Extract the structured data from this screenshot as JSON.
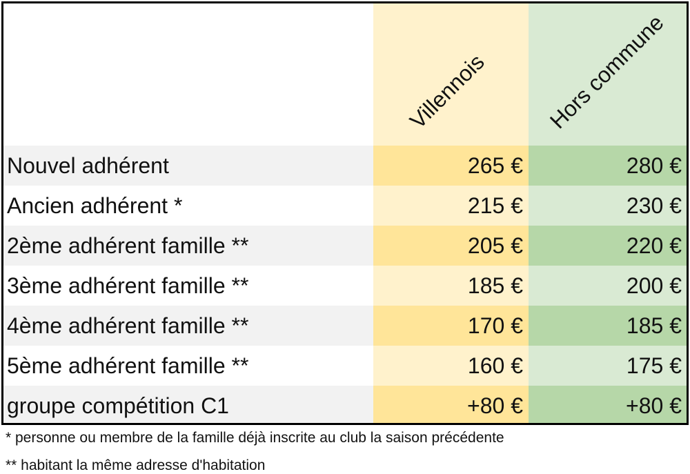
{
  "headers": {
    "col1": "Villennois",
    "col2": "Hors commune"
  },
  "colors": {
    "label_band": "#f2f2f2",
    "col1_light": "#fff2cc",
    "col1_band": "#ffe599",
    "col2_light": "#d9ead3",
    "col2_band": "#b6d7a8"
  },
  "rows": [
    {
      "label": "Nouvel adhérent",
      "v1": "265 €",
      "v2": "280 €"
    },
    {
      "label": "Ancien adhérent *",
      "v1": "215 €",
      "v2": "230 €"
    },
    {
      "label": "2ème adhérent famille **",
      "v1": "205 €",
      "v2": "220 €"
    },
    {
      "label": "3ème adhérent famille **",
      "v1": "185 €",
      "v2": "200 €"
    },
    {
      "label": "4ème adhérent famille **",
      "v1": "170 €",
      "v2": "185 €"
    },
    {
      "label": "5ème adhérent famille **",
      "v1": "160 €",
      "v2": "175 €"
    },
    {
      "label": "groupe compétition C1",
      "v1": "+80 €",
      "v2": "+80 €"
    }
  ],
  "footnotes": [
    "* personne ou membre de la famille déjà inscrite au club la saison précédente",
    "** habitant la même adresse d'habitation"
  ]
}
